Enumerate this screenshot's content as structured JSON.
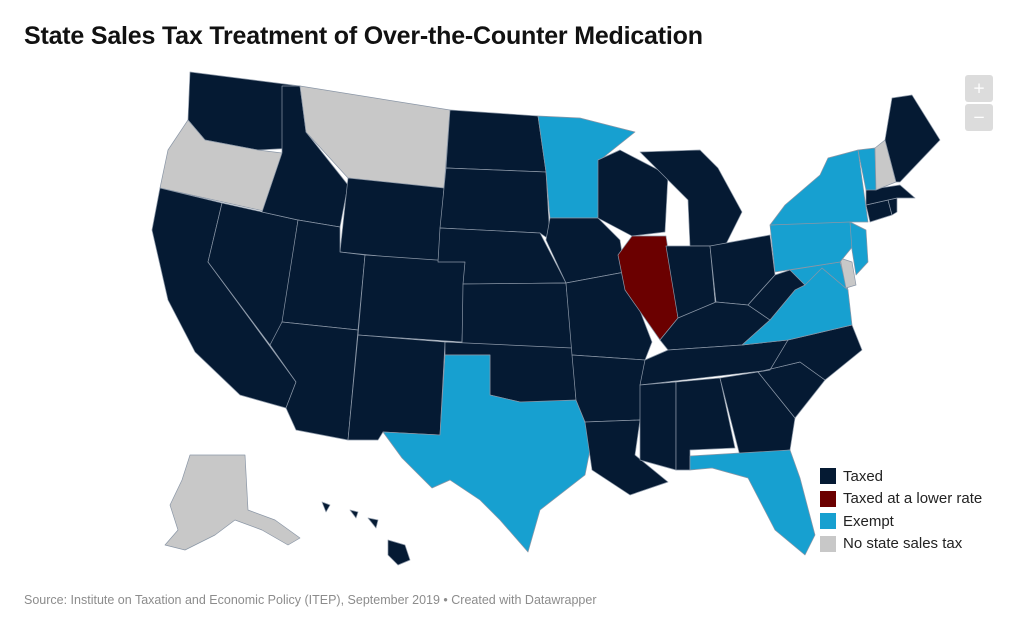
{
  "title": "State Sales Tax Treatment of Over-the-Counter Medication",
  "source": "Source: Institute on Taxation and Economic Policy (ITEP), September 2019 • Created with Datawrapper",
  "zoom": {
    "zoom_in_label": "+",
    "zoom_out_label": "−"
  },
  "colors": {
    "taxed": "#051a33",
    "lower": "#6b0000",
    "exempt": "#17a0d0",
    "none": "#c8c8c8"
  },
  "legend": [
    {
      "key": "taxed",
      "label": "Taxed"
    },
    {
      "key": "lower",
      "label": "Taxed at a lower rate"
    },
    {
      "key": "exempt",
      "label": "Exempt"
    },
    {
      "key": "none",
      "label": "No state sales tax"
    }
  ],
  "states": {
    "WA": "taxed",
    "OR": "none",
    "CA": "taxed",
    "NV": "taxed",
    "ID": "taxed",
    "MT": "none",
    "WY": "taxed",
    "UT": "taxed",
    "AZ": "taxed",
    "CO": "taxed",
    "NM": "taxed",
    "ND": "taxed",
    "SD": "taxed",
    "NE": "taxed",
    "KS": "taxed",
    "OK": "taxed",
    "TX": "exempt",
    "MN": "exempt",
    "IA": "taxed",
    "MO": "taxed",
    "AR": "taxed",
    "LA": "taxed",
    "WI": "taxed",
    "IL": "lower",
    "MI": "taxed",
    "IN": "taxed",
    "OH": "taxed",
    "KY": "taxed",
    "TN": "taxed",
    "MS": "taxed",
    "AL": "taxed",
    "GA": "taxed",
    "FL": "exempt",
    "SC": "taxed",
    "NC": "taxed",
    "VA": "exempt",
    "WV": "taxed",
    "MD": "exempt",
    "DE": "none",
    "PA": "exempt",
    "NJ": "exempt",
    "NY": "exempt",
    "CT": "taxed",
    "RI": "taxed",
    "MA": "taxed",
    "VT": "exempt",
    "NH": "none",
    "ME": "taxed",
    "AK": "none",
    "HI": "taxed"
  }
}
